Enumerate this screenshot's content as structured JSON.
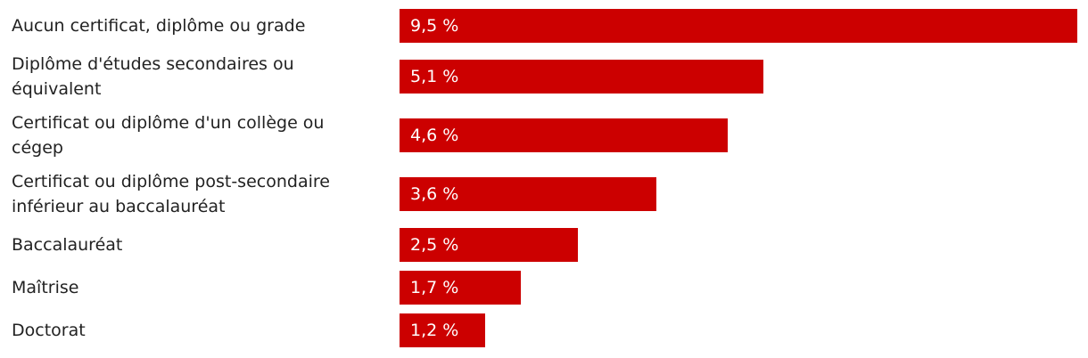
{
  "chart_data": {
    "type": "bar",
    "orientation": "horizontal",
    "categories": [
      "Aucun certificat, diplôme ou grade",
      "Diplôme d'études secondaires ou\néquivalent",
      "Certificat ou diplôme d'un collège ou\ncégep",
      "Certificat ou diplôme post-secondaire\ninférieur au baccalauréat",
      "Baccalauréat",
      "Maîtrise",
      "Doctorat"
    ],
    "values": [
      9.5,
      5.1,
      4.6,
      3.6,
      2.5,
      1.7,
      1.2
    ],
    "value_labels": [
      "9,5 %",
      "5,1 %",
      "4,6 %",
      "3,6 %",
      "2,5 %",
      "1,7 %",
      "1,2 %"
    ],
    "color": "#cc0000"
  }
}
